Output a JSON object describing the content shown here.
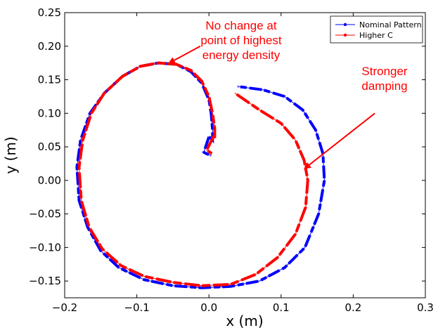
{
  "chart_data": {
    "type": "line",
    "xlabel": "x (m)",
    "ylabel": "y (m)",
    "xlim": [
      -0.2,
      0.3
    ],
    "ylim": [
      -0.175,
      0.25
    ],
    "xticks": [
      -0.2,
      -0.1,
      0.0,
      0.1,
      0.2,
      0.3
    ],
    "yticks": [
      -0.15,
      -0.1,
      -0.05,
      0.0,
      0.05,
      0.1,
      0.15,
      0.2,
      0.25
    ],
    "xtick_labels": [
      "−0.2",
      "−0.1",
      "0.0",
      "0.1",
      "0.2",
      "0.3"
    ],
    "ytick_labels": [
      "−0.15",
      "−0.10",
      "−0.05",
      "0.00",
      "0.05",
      "0.10",
      "0.15",
      "0.20",
      "0.25"
    ],
    "grid": false,
    "legend_position": "top-right",
    "series": [
      {
        "name": "Nominal Pattern",
        "color": "#0000ff",
        "x": [
          0.0,
          0.005,
          0.005,
          0.003,
          0.0,
          -0.01,
          -0.025,
          -0.045,
          -0.07,
          -0.095,
          -0.12,
          -0.145,
          -0.165,
          -0.178,
          -0.183,
          -0.18,
          -0.168,
          -0.15,
          -0.125,
          -0.09,
          -0.05,
          -0.01,
          0.03,
          0.07,
          0.105,
          0.133,
          0.152,
          0.16,
          0.158,
          0.148,
          0.13,
          0.105,
          0.075,
          0.04
        ],
        "y": [
          0.065,
          0.06,
          0.075,
          0.1,
          0.12,
          0.145,
          0.162,
          0.173,
          0.175,
          0.17,
          0.155,
          0.13,
          0.1,
          0.06,
          0.02,
          -0.03,
          -0.07,
          -0.105,
          -0.13,
          -0.148,
          -0.157,
          -0.16,
          -0.158,
          -0.15,
          -0.13,
          -0.1,
          -0.05,
          0.0,
          0.04,
          0.075,
          0.105,
          0.125,
          0.135,
          0.14
        ]
      },
      {
        "name": "Higher C",
        "color": "#ff0000",
        "x": [
          0.007,
          0.008,
          0.008,
          0.005,
          0.0,
          -0.01,
          -0.025,
          -0.045,
          -0.07,
          -0.095,
          -0.12,
          -0.145,
          -0.163,
          -0.175,
          -0.18,
          -0.177,
          -0.166,
          -0.148,
          -0.122,
          -0.09,
          -0.05,
          -0.01,
          0.03,
          0.065,
          0.095,
          0.12,
          0.134,
          0.137,
          0.132,
          0.12,
          0.1,
          0.07,
          0.036
        ],
        "y": [
          0.067,
          0.063,
          0.078,
          0.1,
          0.125,
          0.148,
          0.164,
          0.173,
          0.175,
          0.17,
          0.155,
          0.13,
          0.1,
          0.06,
          0.02,
          -0.03,
          -0.07,
          -0.102,
          -0.127,
          -0.143,
          -0.152,
          -0.157,
          -0.155,
          -0.14,
          -0.115,
          -0.08,
          -0.04,
          0.0,
          0.03,
          0.06,
          0.085,
          0.105,
          0.13
        ]
      },
      {
        "name": "",
        "color": "#0000ff",
        "x": [
          0.0,
          -0.007,
          -0.004,
          0.003
        ],
        "y": [
          0.065,
          0.042,
          0.04,
          0.037
        ]
      },
      {
        "name": "",
        "color": "#ff0000",
        "x": [
          0.007,
          -0.003,
          0.004
        ],
        "y": [
          0.067,
          0.045,
          0.04
        ]
      }
    ],
    "annotations": [
      {
        "lines": [
          "No change at",
          "point of highest",
          "energy density"
        ],
        "arrow_to": [
          -0.055,
          0.175
        ],
        "arrow_from": [
          -0.012,
          0.2
        ]
      },
      {
        "lines": [
          "Stronger",
          "damping"
        ],
        "arrow_to": [
          0.133,
          0.018
        ],
        "arrow_from": [
          0.23,
          0.1
        ]
      }
    ]
  }
}
